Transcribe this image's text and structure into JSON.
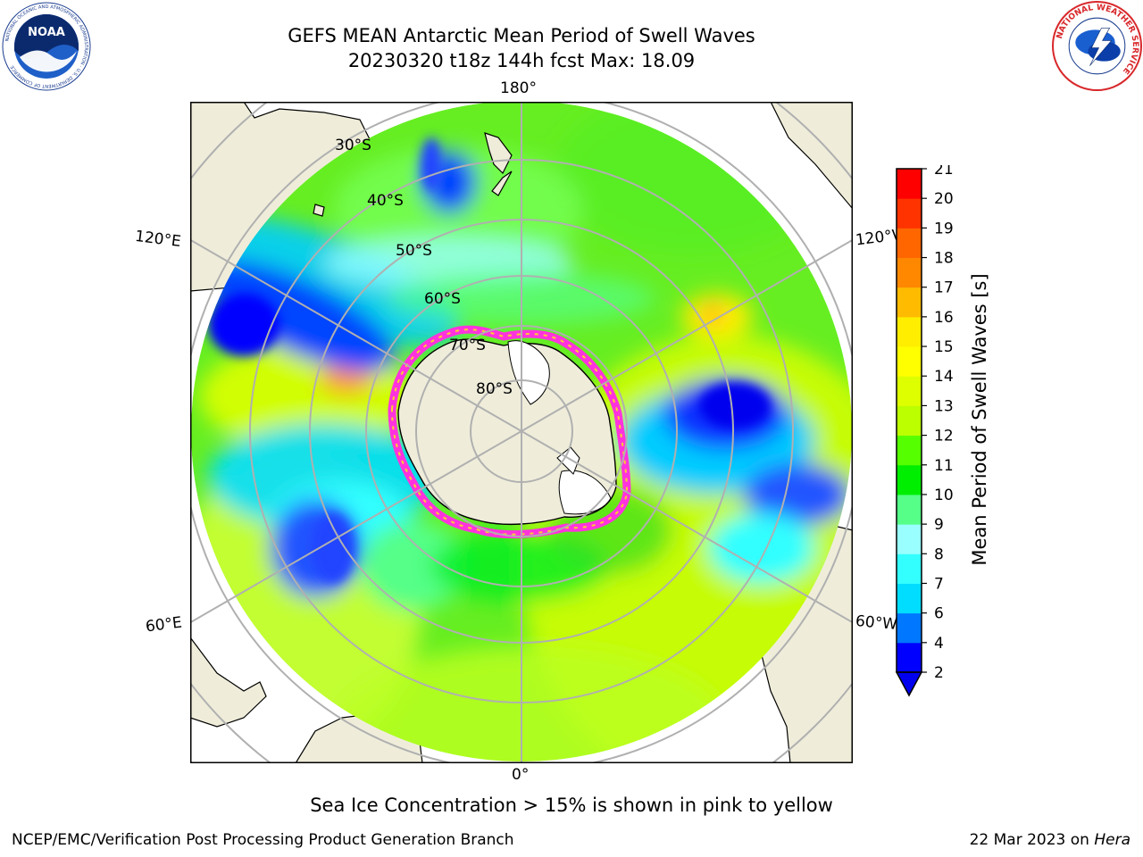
{
  "title": {
    "line1": "GEFS MEAN Antarctic Mean Period of Swell Waves",
    "line2": "20230320 t18z 144h fcst   Max: 18.09"
  },
  "map": {
    "longitude_labels": [
      "180°",
      "120°E",
      "120°W",
      "60°E",
      "60°W",
      "0°"
    ],
    "latitude_labels": [
      "30°S",
      "40°S",
      "50°S",
      "60°S",
      "70°S",
      "80°S"
    ],
    "colors": {
      "land": "#efedda",
      "grid": "#b0b0b0",
      "ice_edge": "#ff33dd"
    }
  },
  "colorbar": {
    "label": "Mean Period of Swell Waves [s]",
    "ticks": [
      "2",
      "4",
      "6",
      "7",
      "8",
      "9",
      "10",
      "11",
      "12",
      "13",
      "14",
      "15",
      "16",
      "17",
      "18",
      "19",
      "20",
      "21"
    ],
    "colors": [
      "#0000ff",
      "#0077ff",
      "#00ddff",
      "#33ffff",
      "#99ffff",
      "#55ff88",
      "#00ee00",
      "#55ff00",
      "#bbff00",
      "#ddff00",
      "#ffff00",
      "#ffee00",
      "#ffbb00",
      "#ff8800",
      "#ff6600",
      "#ff3300",
      "#ff0000"
    ]
  },
  "caption": "Sea Ice Concentration > 15% is shown in pink to yellow",
  "footer": {
    "left": "NCEP/EMC/Verification Post Processing Product Generation Branch",
    "date": "22 Mar 2023 on ",
    "machine": "Hera"
  },
  "logos": {
    "noaa": "NOAA",
    "noaa_ring": "NATIONAL OCEANIC AND ATMOSPHERIC ADMINISTRATION · U.S. DEPARTMENT OF COMMERCE",
    "nws_ring": "NATIONAL WEATHER SERVICE"
  }
}
